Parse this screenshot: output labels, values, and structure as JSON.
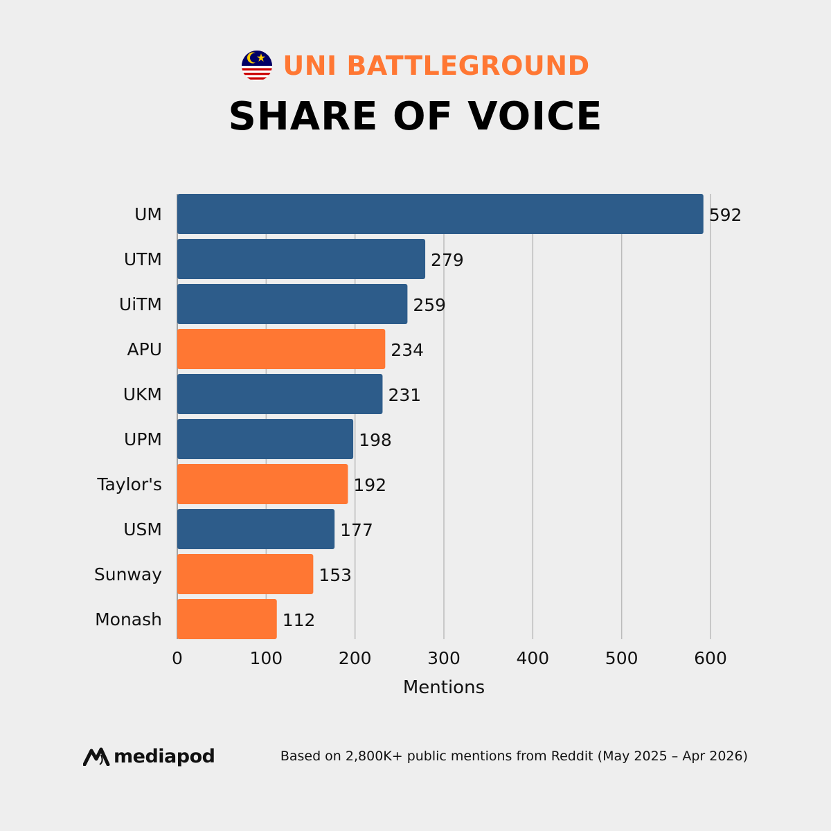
{
  "header": {
    "eyebrow": "UNI BATTLEGROUND",
    "title": "SHARE OF VOICE",
    "flag_icon": "malaysia-flag-icon"
  },
  "colors": {
    "background": "#eeeeee",
    "public": "#2d5c8a",
    "private": "#ff7733",
    "grid": "#bbbbbb"
  },
  "chart_data": {
    "type": "bar",
    "orientation": "horizontal",
    "title": "SHARE OF VOICE",
    "xlabel": "Mentions",
    "ylabel": "",
    "xlim": [
      0,
      600
    ],
    "xticks": [
      0,
      100,
      200,
      300,
      400,
      500,
      600
    ],
    "grid": "vertical",
    "categories": [
      "UM",
      "UTM",
      "UiTM",
      "APU",
      "UKM",
      "UPM",
      "Taylor's",
      "USM",
      "Sunway",
      "Monash"
    ],
    "values": [
      592,
      279,
      259,
      234,
      231,
      198,
      192,
      177,
      153,
      112
    ],
    "bar_colors": [
      "#2d5c8a",
      "#2d5c8a",
      "#2d5c8a",
      "#ff7733",
      "#2d5c8a",
      "#2d5c8a",
      "#ff7733",
      "#2d5c8a",
      "#ff7733",
      "#ff7733"
    ],
    "data_labels": [
      "592",
      "279",
      "259",
      "234",
      "231",
      "198",
      "192",
      "177",
      "153",
      "112"
    ]
  },
  "footer": {
    "brand": "mediapod",
    "brand_icon": "mediapod-logo-icon",
    "note": "Based on 2,800K+ public mentions from Reddit (May 2025 – Apr 2026)"
  }
}
